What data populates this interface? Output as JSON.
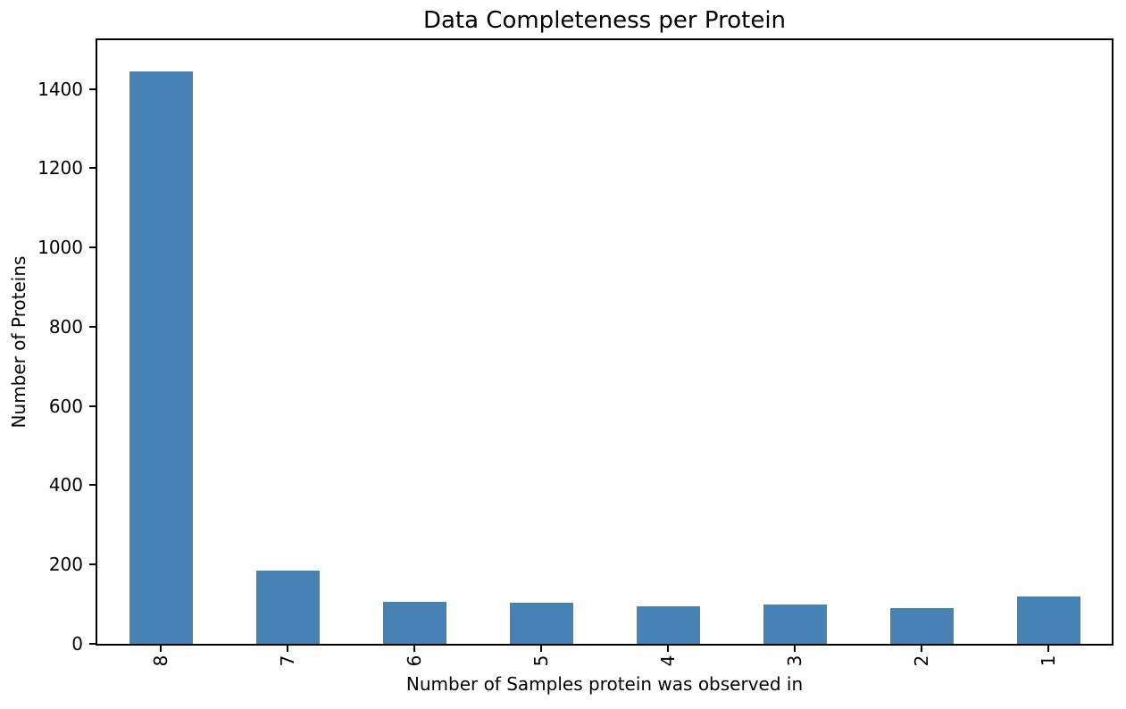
{
  "figure": {
    "background": "#ffffff"
  },
  "chart_data": {
    "type": "bar",
    "title": "Data Completeness per Protein",
    "xlabel": "Number of Samples protein was observed in",
    "ylabel": "Number of Proteins",
    "categories": [
      "8",
      "7",
      "6",
      "5",
      "4",
      "3",
      "2",
      "1"
    ],
    "values": [
      1445,
      185,
      107,
      103,
      95,
      99,
      91,
      119
    ],
    "yticks": [
      0,
      200,
      400,
      600,
      800,
      1000,
      1200,
      1400
    ],
    "ylim": [
      0,
      1523
    ],
    "bar_color": "#4682b4",
    "axis_color": "#000000",
    "text_color": "#000000",
    "grid": false,
    "legend": "none",
    "bar_width_frac": 0.5,
    "xtick_rotation": 90
  }
}
